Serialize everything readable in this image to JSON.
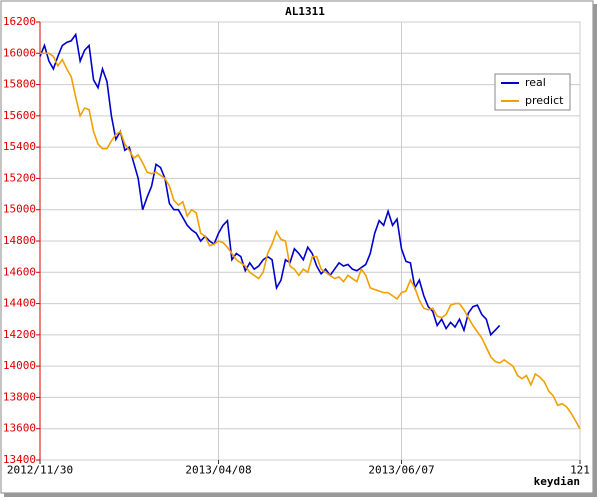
{
  "chart_data": {
    "type": "line",
    "title": "AL1311",
    "xlabel": "keydian",
    "x": [
      0,
      1,
      2,
      3,
      4,
      5,
      6,
      7,
      8,
      9,
      10,
      11,
      12,
      13,
      14,
      15,
      16,
      17,
      18,
      19,
      20,
      21,
      22,
      23,
      24,
      25,
      26,
      27,
      28,
      29,
      30,
      31,
      32,
      33,
      34,
      35,
      36,
      37,
      38,
      39,
      40,
      41,
      42,
      43,
      44,
      45,
      46,
      47,
      48,
      49,
      50,
      51,
      52,
      53,
      54,
      55,
      56,
      57,
      58,
      59,
      60,
      61,
      62,
      63,
      64,
      65,
      66,
      67,
      68,
      69,
      70,
      71,
      72,
      73,
      74,
      75,
      76,
      77,
      78,
      79,
      80,
      81,
      82,
      83,
      84,
      85,
      86,
      87,
      88,
      89,
      90,
      91,
      92,
      93,
      94,
      95,
      96,
      97,
      98,
      99,
      100,
      101,
      102,
      103,
      104,
      105,
      106,
      107,
      108,
      109,
      110,
      111,
      112,
      113,
      114,
      115,
      116,
      117,
      118,
      119,
      120,
      121
    ],
    "series": [
      {
        "name": "real",
        "color": "#0000cc",
        "values": [
          15980,
          16050,
          15950,
          15900,
          15980,
          16050,
          16070,
          16080,
          16120,
          15950,
          16020,
          16050,
          15830,
          15780,
          15900,
          15820,
          15600,
          15450,
          15500,
          15380,
          15400,
          15300,
          15200,
          15000,
          15080,
          15150,
          15290,
          15270,
          15200,
          15040,
          15000,
          15000,
          14950,
          14900,
          14870,
          14850,
          14800,
          14830,
          14800,
          14780,
          14850,
          14900,
          14930,
          14680,
          14720,
          14700,
          14610,
          14660,
          14620,
          14640,
          14680,
          14700,
          14680,
          14500,
          14550,
          14680,
          14660,
          14750,
          14720,
          14680,
          14760,
          14720,
          14640,
          14590,
          14620,
          14580,
          14620,
          14660,
          14640,
          14650,
          14620,
          14610,
          14630,
          14650,
          14720,
          14850,
          14930,
          14900,
          14990,
          14900,
          14940,
          14750,
          14670,
          14660,
          14500,
          14550,
          14450,
          14380,
          14350,
          14260,
          14300,
          14240,
          14280,
          14250,
          14300,
          14230,
          14340,
          14380,
          14390,
          14330,
          14300,
          14200,
          14230,
          14260,
          null,
          null,
          null,
          null,
          null,
          null,
          null,
          null,
          null,
          null,
          null,
          null,
          null,
          null,
          null,
          null,
          null,
          null
        ]
      },
      {
        "name": "predict",
        "color": "#f0a000",
        "values": [
          16000,
          16000,
          16000,
          15980,
          15920,
          15960,
          15900,
          15850,
          15720,
          15600,
          15650,
          15640,
          15500,
          15420,
          15390,
          15390,
          15440,
          15480,
          15500,
          15420,
          15380,
          15330,
          15350,
          15300,
          15240,
          15230,
          15240,
          15220,
          15200,
          15150,
          15060,
          15030,
          15050,
          14960,
          15000,
          14980,
          14850,
          14830,
          14770,
          14780,
          14800,
          14790,
          14760,
          14720,
          14680,
          14660,
          14640,
          14600,
          14580,
          14560,
          14600,
          14720,
          14780,
          14860,
          14810,
          14800,
          14640,
          14620,
          14580,
          14620,
          14600,
          14700,
          14700,
          14620,
          14600,
          14580,
          14560,
          14570,
          14540,
          14580,
          14560,
          14540,
          14620,
          14580,
          14500,
          14490,
          14480,
          14470,
          14470,
          14450,
          14430,
          14470,
          14480,
          14550,
          14500,
          14420,
          14370,
          14360,
          14370,
          14320,
          14310,
          14330,
          14390,
          14400,
          14400,
          14360,
          14310,
          14260,
          14220,
          14180,
          14120,
          14060,
          14030,
          14020,
          14040,
          14020,
          14000,
          13940,
          13920,
          13940,
          13880,
          13950,
          13930,
          13900,
          13840,
          13810,
          13750,
          13760,
          13740,
          13700,
          13650,
          13600
        ]
      }
    ],
    "xlim": [
      0,
      121
    ],
    "xticks": [
      {
        "value": 0,
        "label": "2012/11/30"
      },
      {
        "value": 40,
        "label": "2013/04/08"
      },
      {
        "value": 81,
        "label": "2013/06/07"
      },
      121
    ],
    "ylim": [
      13400,
      16200
    ],
    "yticks": [
      13400,
      13600,
      13800,
      14000,
      14200,
      14400,
      14600,
      14800,
      15000,
      15200,
      15400,
      15600,
      15800,
      16000,
      16200
    ],
    "grid": true,
    "legend": "upper right"
  }
}
